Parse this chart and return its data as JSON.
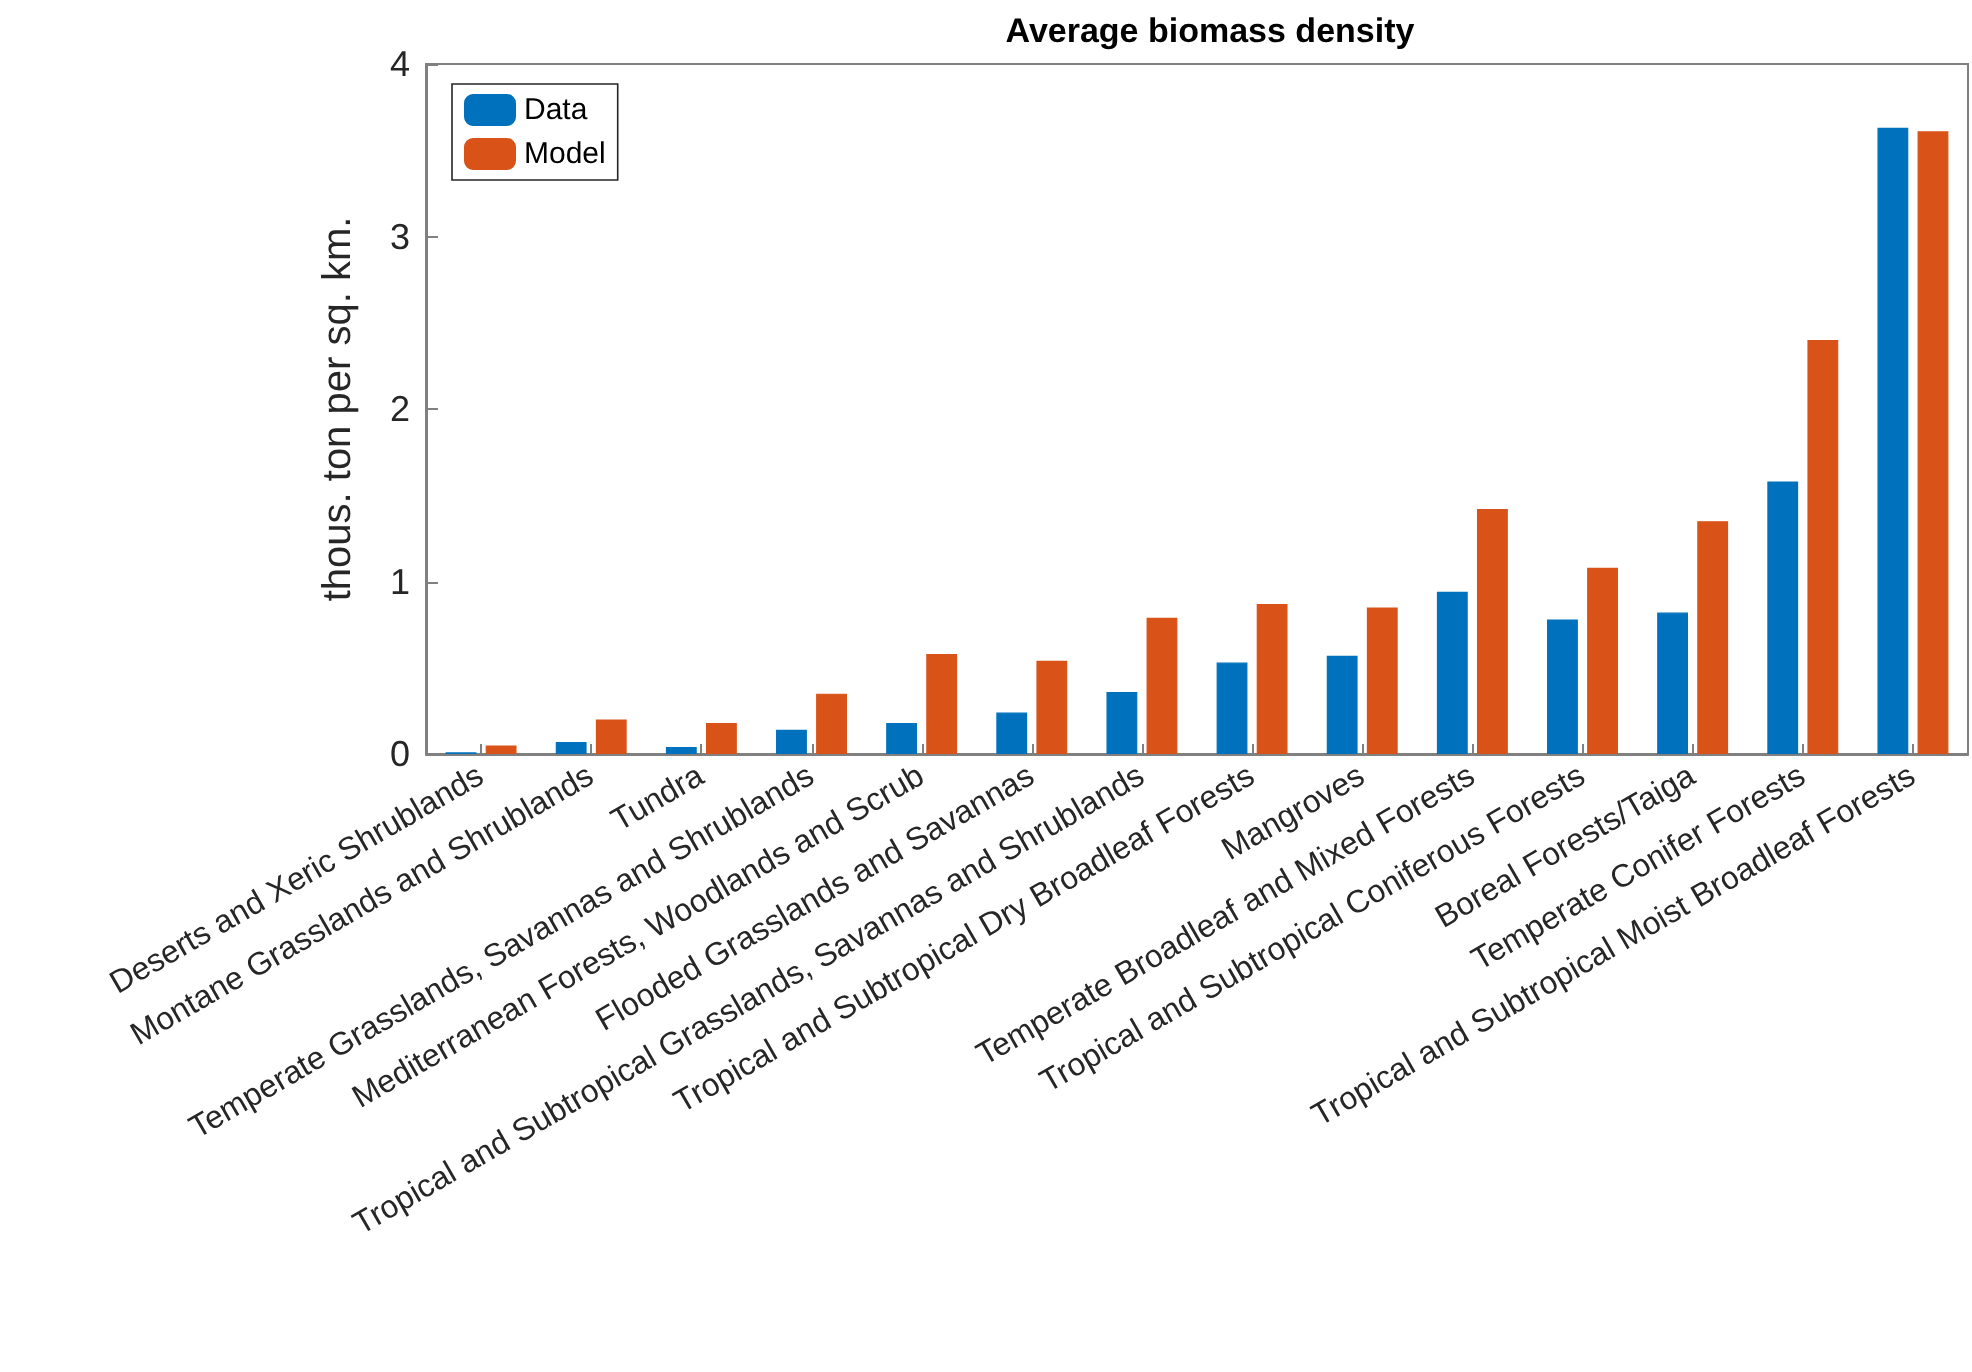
{
  "chart_data": {
    "type": "bar",
    "title": "Average biomass density",
    "ylabel": "thous. ton per sq. km.",
    "categories": [
      "Deserts and Xeric Shrublands",
      "Montane Grasslands and Shrublands",
      "Tundra",
      "Temperate Grasslands, Savannas and Shrublands",
      "Mediterranean Forests, Woodlands and Scrub",
      "Flooded Grasslands and Savannas",
      "Tropical and Subtropical Grasslands, Savannas and Shrublands",
      "Tropical and Subtropical Dry Broadleaf Forests",
      "Mangroves",
      "Temperate Broadleaf and Mixed Forests",
      "Tropical and Subtropical Coniferous Forests",
      "Boreal Forests/Taiga",
      "Temperate Conifer Forests",
      "Tropical and Subtropical Moist Broadleaf Forests"
    ],
    "series": [
      {
        "name": "Data",
        "color": "#0072bd",
        "values": [
          0.01,
          0.07,
          0.04,
          0.14,
          0.18,
          0.24,
          0.36,
          0.53,
          0.57,
          0.94,
          0.78,
          0.82,
          1.58,
          3.63
        ]
      },
      {
        "name": "Model",
        "color": "#d95319",
        "values": [
          0.05,
          0.2,
          0.18,
          0.35,
          0.58,
          0.54,
          0.79,
          0.87,
          0.85,
          1.42,
          1.08,
          1.35,
          2.4,
          3.61
        ]
      }
    ],
    "ylim": [
      0,
      4
    ],
    "yticks": [
      0,
      1,
      2,
      3,
      4
    ],
    "grid": false,
    "legend": "top left"
  }
}
